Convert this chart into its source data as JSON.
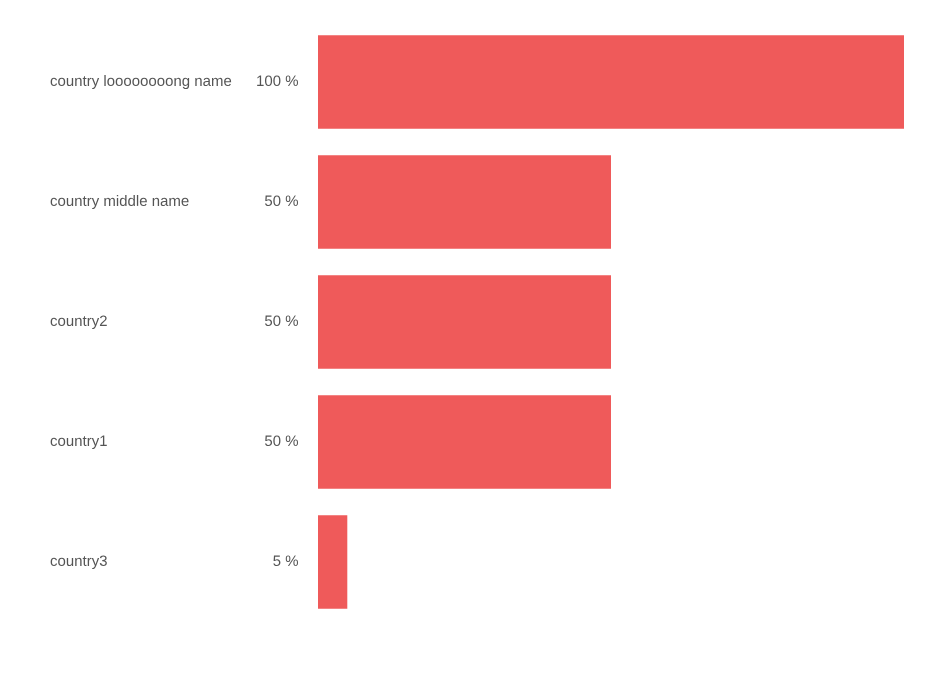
{
  "chart_data": {
    "type": "bar",
    "orientation": "horizontal",
    "categories": [
      "country loooooooong name",
      "country middle name",
      "country2",
      "country1",
      "country3"
    ],
    "values": [
      100,
      50,
      50,
      50,
      5
    ],
    "value_labels": [
      "100 %",
      "50 %",
      "50 %",
      "50 %",
      "5 %"
    ],
    "color": "#ef5a5a",
    "xlim": [
      0,
      100
    ],
    "grid": false,
    "legend": false
  }
}
